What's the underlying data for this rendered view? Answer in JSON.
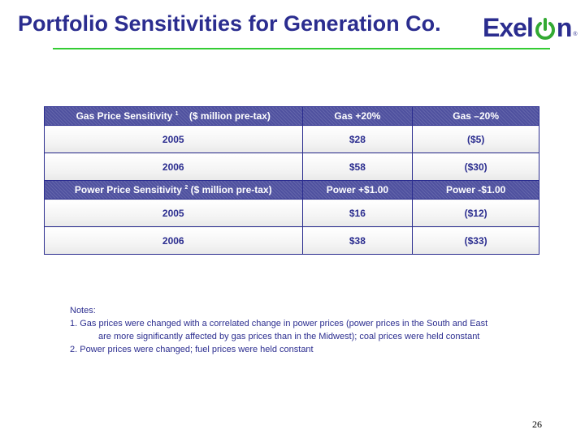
{
  "slide": {
    "title": "Portfolio Sensitivities for Generation Co.",
    "page_number": "26"
  },
  "logo": {
    "text_before": "Exel",
    "text_after": "n",
    "registered": "®",
    "icon": "power-symbol-icon",
    "colors": {
      "text": "#2b2d8f",
      "power": "#33aa33"
    }
  },
  "gas_table": {
    "header": {
      "label": "Gas Price Sensitivity ",
      "footnote": "1",
      "unit": "    ($ million pre-tax)",
      "col_up": "Gas +20%",
      "col_down": "Gas –20%"
    },
    "rows": [
      {
        "year": "2005",
        "up": "$28",
        "down": "($5)"
      },
      {
        "year": "2006",
        "up": "$58",
        "down": "($30)"
      }
    ]
  },
  "power_table": {
    "header": {
      "label": "Power Price Sensitivity ",
      "footnote": "2",
      "unit": " ($ million pre-tax)",
      "col_up": "Power +$1.00",
      "col_down": "Power -$1.00"
    },
    "rows": [
      {
        "year": "2005",
        "up": "$16",
        "down": "($12)"
      },
      {
        "year": "2006",
        "up": "$38",
        "down": "($33)"
      }
    ]
  },
  "notes": {
    "heading": "Notes:",
    "note1_line1": "1. Gas prices were changed with a correlated change in power prices (power prices in the South and East",
    "note1_line2": "are more significantly affected by gas prices than in the Midwest); coal prices were held constant",
    "note2": "2. Power prices were changed; fuel prices were held constant"
  },
  "colors": {
    "title": "#2b2d8f",
    "rule": "#33cc33",
    "header_bg": "#4f519f",
    "cell_text": "#2b2d8f"
  }
}
